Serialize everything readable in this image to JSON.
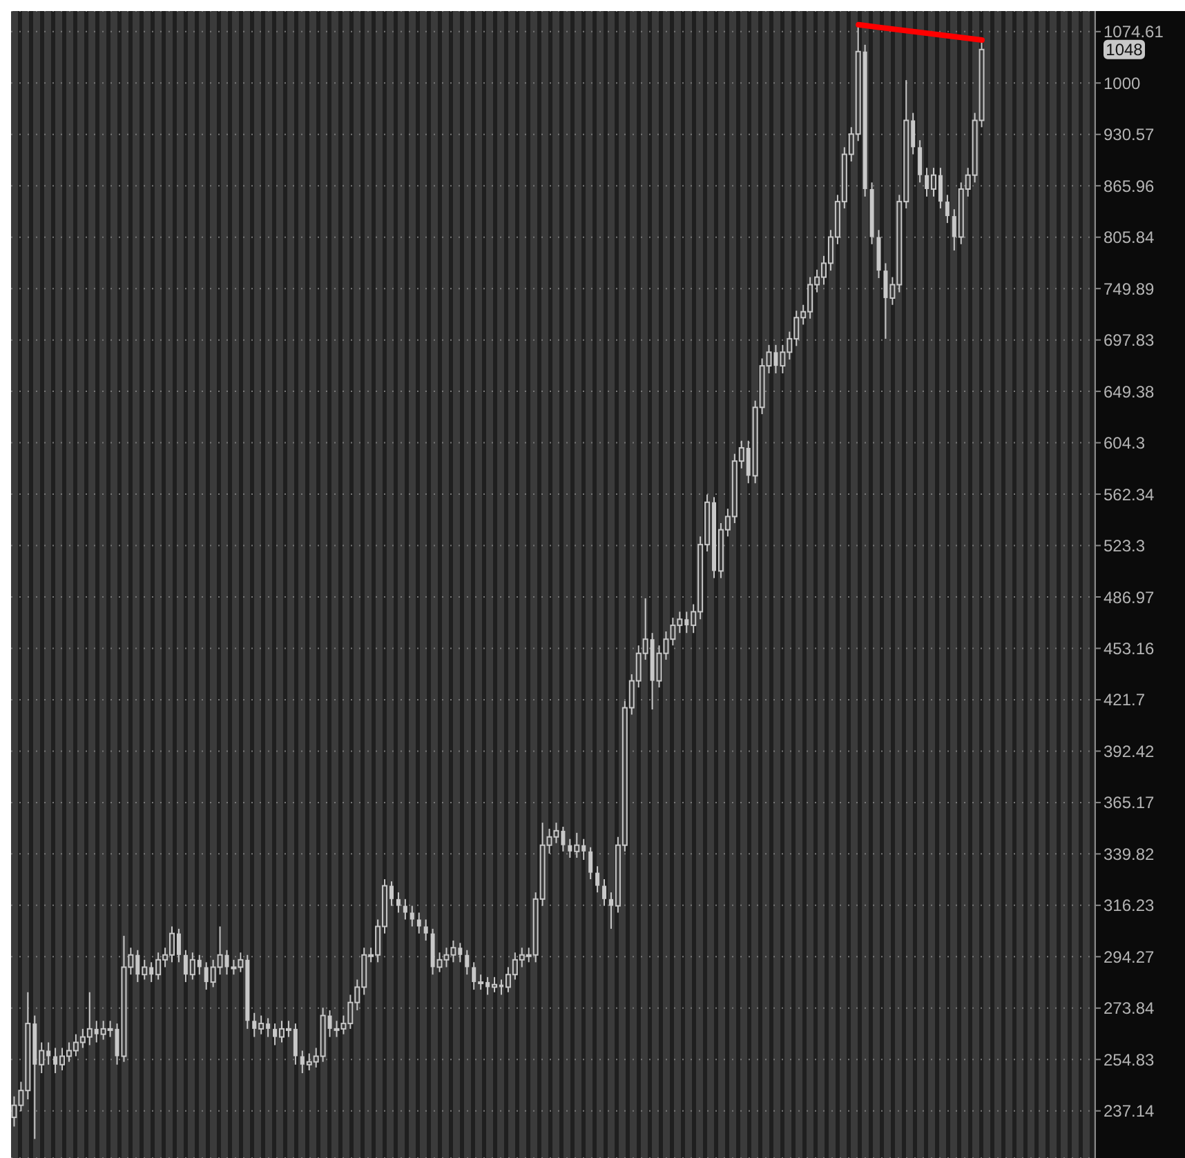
{
  "chart_data": {
    "type": "candlestick",
    "color": "#c8c8c8",
    "log": true,
    "grid": "y",
    "tick_labels": "y",
    "ylim": [
      222,
      1106
    ],
    "yticks": [
      237.14,
      254.83,
      273.84,
      294.27,
      316.23,
      339.82,
      365.17,
      392.42,
      421.7,
      453.16,
      486.97,
      523.3,
      562.34,
      604.3,
      649.38,
      697.83,
      749.89,
      805.84,
      865.96,
      930.57,
      1000,
      1074.61
    ],
    "categories": [
      null,
      null,
      null,
      null,
      null,
      null,
      null,
      null,
      null,
      null,
      null,
      null,
      null,
      null,
      null,
      null,
      null,
      null,
      null,
      null,
      null,
      null,
      null,
      null,
      null,
      null,
      null,
      null,
      null,
      null,
      null,
      null,
      null,
      null,
      null,
      null,
      null,
      null,
      null,
      null,
      null,
      null,
      null,
      null,
      null,
      null,
      null,
      null,
      null,
      null,
      null,
      null,
      null,
      null,
      null,
      null,
      null,
      null,
      null,
      null,
      null,
      null,
      null,
      null,
      null,
      null,
      null,
      null,
      null,
      null,
      null,
      null,
      null,
      null,
      null,
      null,
      null,
      null,
      null,
      null,
      null,
      null,
      null,
      null,
      null,
      null,
      null,
      null,
      null,
      null,
      null,
      null,
      null,
      null,
      null,
      null,
      null,
      null,
      null,
      null,
      null,
      null,
      null,
      null,
      null,
      null,
      null,
      null,
      null,
      null,
      null,
      null,
      null,
      null,
      null,
      null,
      null,
      null,
      null,
      null,
      null,
      null,
      null,
      null,
      null,
      null,
      null,
      null,
      null,
      null,
      null,
      null,
      null,
      null,
      null,
      null,
      null,
      null,
      null,
      null,
      null,
      null,
      null,
      null,
      null,
      null,
      null,
      null,
      null,
      null,
      null,
      null,
      null,
      null,
      null,
      null,
      null,
      null
    ],
    "ohlc": [
      [
        235,
        242,
        232,
        239
      ],
      [
        239,
        247,
        237,
        244
      ],
      [
        244,
        280,
        241,
        268
      ],
      [
        268,
        271,
        228,
        253
      ],
      [
        253,
        261,
        250,
        258
      ],
      [
        258,
        261,
        253,
        256
      ],
      [
        256,
        259,
        250,
        253
      ],
      [
        253,
        259,
        251,
        256
      ],
      [
        256,
        261,
        254,
        258
      ],
      [
        258,
        264,
        256,
        261
      ],
      [
        261,
        266,
        259,
        263
      ],
      [
        263,
        280,
        260,
        266
      ],
      [
        266,
        269,
        261,
        264
      ],
      [
        264,
        269,
        262,
        266
      ],
      [
        266,
        269,
        263,
        266
      ],
      [
        266,
        268,
        253,
        256
      ],
      [
        256,
        303,
        254,
        290
      ],
      [
        290,
        298,
        287,
        295
      ],
      [
        295,
        297,
        284,
        287
      ],
      [
        287,
        293,
        285,
        290
      ],
      [
        290,
        292,
        284,
        287
      ],
      [
        287,
        296,
        285,
        293
      ],
      [
        293,
        298,
        290,
        295
      ],
      [
        295,
        307,
        292,
        304
      ],
      [
        304,
        306,
        292,
        295
      ],
      [
        295,
        297,
        284,
        287
      ],
      [
        287,
        296,
        285,
        293
      ],
      [
        293,
        295,
        287,
        290
      ],
      [
        290,
        292,
        281,
        284
      ],
      [
        284,
        293,
        282,
        290
      ],
      [
        290,
        307,
        287,
        295
      ],
      [
        295,
        297,
        287,
        290
      ],
      [
        290,
        293,
        287,
        290
      ],
      [
        290,
        296,
        288,
        293
      ],
      [
        293,
        295,
        266,
        269
      ],
      [
        269,
        272,
        263,
        266
      ],
      [
        266,
        271,
        264,
        268
      ],
      [
        268,
        270,
        263,
        266
      ],
      [
        266,
        268,
        260,
        263
      ],
      [
        263,
        269,
        261,
        266
      ],
      [
        266,
        269,
        263,
        266
      ],
      [
        266,
        268,
        253,
        256
      ],
      [
        256,
        258,
        250,
        253
      ],
      [
        253,
        257,
        251,
        254
      ],
      [
        254,
        259,
        252,
        256
      ],
      [
        256,
        274,
        254,
        271
      ],
      [
        271,
        273,
        263,
        266
      ],
      [
        266,
        269,
        263,
        266
      ],
      [
        266,
        271,
        264,
        268
      ],
      [
        268,
        279,
        266,
        276
      ],
      [
        276,
        285,
        273,
        282
      ],
      [
        282,
        298,
        279,
        295
      ],
      [
        295,
        298,
        292,
        295
      ],
      [
        295,
        310,
        292,
        307
      ],
      [
        307,
        328,
        304,
        325
      ],
      [
        325,
        327,
        316,
        319
      ],
      [
        319,
        322,
        313,
        316
      ],
      [
        316,
        319,
        310,
        313
      ],
      [
        313,
        316,
        307,
        310
      ],
      [
        310,
        313,
        304,
        307
      ],
      [
        307,
        310,
        301,
        304
      ],
      [
        304,
        306,
        287,
        290
      ],
      [
        290,
        296,
        288,
        293
      ],
      [
        293,
        298,
        290,
        295
      ],
      [
        295,
        301,
        292,
        298
      ],
      [
        298,
        300,
        292,
        295
      ],
      [
        295,
        297,
        287,
        290
      ],
      [
        290,
        292,
        281,
        284
      ],
      [
        284,
        287,
        281,
        284
      ],
      [
        284,
        286,
        279,
        282
      ],
      [
        282,
        286,
        280,
        283
      ],
      [
        283,
        285,
        279,
        282
      ],
      [
        282,
        290,
        280,
        287
      ],
      [
        287,
        296,
        285,
        293
      ],
      [
        293,
        298,
        290,
        295
      ],
      [
        295,
        298,
        292,
        295
      ],
      [
        295,
        322,
        292,
        319
      ],
      [
        319,
        355,
        316,
        344
      ],
      [
        344,
        352,
        340,
        348
      ],
      [
        348,
        355,
        345,
        351
      ],
      [
        351,
        353,
        341,
        344
      ],
      [
        344,
        347,
        338,
        341
      ],
      [
        341,
        350,
        338,
        344
      ],
      [
        344,
        347,
        337,
        341
      ],
      [
        341,
        343,
        328,
        331
      ],
      [
        331,
        334,
        322,
        325
      ],
      [
        325,
        328,
        316,
        319
      ],
      [
        319,
        322,
        306,
        316
      ],
      [
        316,
        348,
        313,
        344
      ],
      [
        344,
        421,
        341,
        417
      ],
      [
        417,
        437,
        413,
        433
      ],
      [
        433,
        455,
        429,
        450
      ],
      [
        450,
        486,
        446,
        459
      ],
      [
        459,
        463,
        416,
        433
      ],
      [
        433,
        455,
        429,
        450
      ],
      [
        450,
        464,
        446,
        459
      ],
      [
        459,
        473,
        455,
        468
      ],
      [
        468,
        477,
        463,
        472
      ],
      [
        472,
        477,
        463,
        468
      ],
      [
        468,
        482,
        463,
        477
      ],
      [
        477,
        530,
        472,
        524
      ],
      [
        524,
        562,
        519,
        556
      ],
      [
        556,
        560,
        500,
        505
      ],
      [
        505,
        540,
        500,
        535
      ],
      [
        535,
        551,
        530,
        545
      ],
      [
        545,
        595,
        540,
        589
      ],
      [
        589,
        606,
        583,
        600
      ],
      [
        600,
        606,
        571,
        577
      ],
      [
        577,
        641,
        571,
        635
      ],
      [
        635,
        680,
        629,
        673
      ],
      [
        673,
        693,
        666,
        686
      ],
      [
        686,
        693,
        666,
        673
      ],
      [
        673,
        693,
        666,
        686
      ],
      [
        686,
        706,
        679,
        699
      ],
      [
        699,
        727,
        692,
        720
      ],
      [
        720,
        733,
        713,
        726
      ],
      [
        726,
        762,
        719,
        754
      ],
      [
        754,
        770,
        746,
        762
      ],
      [
        762,
        785,
        754,
        777
      ],
      [
        777,
        814,
        769,
        806
      ],
      [
        806,
        855,
        798,
        847
      ],
      [
        847,
        914,
        839,
        905
      ],
      [
        905,
        940,
        896,
        931
      ],
      [
        931,
        1085,
        922,
        1045
      ],
      [
        1045,
        1055,
        853,
        862
      ],
      [
        862,
        870,
        798,
        806
      ],
      [
        806,
        814,
        761,
        769
      ],
      [
        769,
        777,
        699,
        740
      ],
      [
        740,
        762,
        733,
        754
      ],
      [
        754,
        855,
        746,
        847
      ],
      [
        847,
        1004,
        839,
        949
      ],
      [
        949,
        959,
        905,
        914
      ],
      [
        914,
        923,
        870,
        879
      ],
      [
        879,
        888,
        853,
        862
      ],
      [
        862,
        888,
        853,
        879
      ],
      [
        879,
        888,
        839,
        847
      ],
      [
        847,
        855,
        822,
        830
      ],
      [
        830,
        838,
        791,
        806
      ],
      [
        806,
        870,
        798,
        862
      ],
      [
        862,
        888,
        853,
        879
      ],
      [
        879,
        959,
        870,
        949
      ],
      [
        949,
        1061,
        940,
        1048
      ],
      null,
      null,
      null,
      null,
      null,
      null,
      null,
      null,
      null,
      null,
      null,
      null,
      null,
      null,
      null,
      null
    ],
    "series": [
      {
        "type": "line",
        "color": "#ff0000",
        "values": [
          null,
          null,
          null,
          null,
          null,
          null,
          null,
          null,
          null,
          null,
          null,
          null,
          null,
          null,
          null,
          null,
          null,
          null,
          null,
          null,
          null,
          null,
          null,
          null,
          null,
          null,
          null,
          null,
          null,
          null,
          null,
          null,
          null,
          null,
          null,
          null,
          null,
          null,
          null,
          null,
          null,
          null,
          null,
          null,
          null,
          null,
          null,
          null,
          null,
          null,
          null,
          null,
          null,
          null,
          null,
          null,
          null,
          null,
          null,
          null,
          null,
          null,
          null,
          null,
          null,
          null,
          null,
          null,
          null,
          null,
          null,
          null,
          null,
          null,
          null,
          null,
          null,
          null,
          null,
          null,
          null,
          null,
          null,
          null,
          null,
          null,
          null,
          null,
          null,
          null,
          null,
          null,
          null,
          null,
          null,
          null,
          null,
          null,
          null,
          null,
          null,
          null,
          null,
          null,
          null,
          null,
          null,
          null,
          null,
          null,
          null,
          null,
          null,
          null,
          null,
          null,
          null,
          null,
          null,
          null,
          null,
          null,
          null,
          1085,
          null,
          null,
          null,
          null,
          null,
          null,
          null,
          null,
          null,
          null,
          null,
          null,
          null,
          null,
          null,
          null,
          null,
          1062,
          null,
          null,
          null,
          null,
          null,
          null,
          null,
          null,
          null,
          null,
          null,
          null,
          null,
          null,
          null,
          null
        ]
      }
    ],
    "annotations": [
      "1048"
    ]
  }
}
